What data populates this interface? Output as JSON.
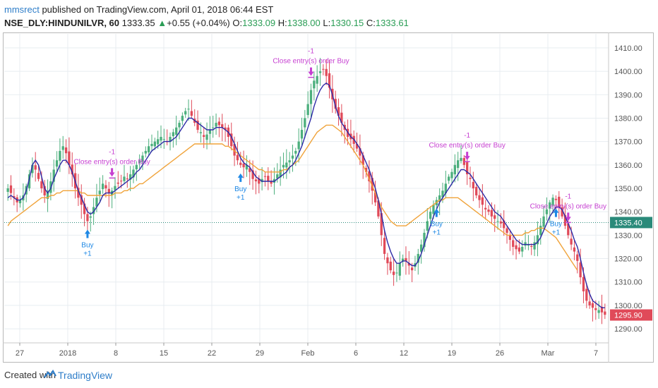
{
  "header": {
    "author": "mmsrect",
    "published": " published on TradingView.com, April 01, 2018 06:44 EST",
    "symbol": "NSE_DLY:HINDUNILVR, 60",
    "last": "1333.35",
    "change": "+0.55 (+0.04%)",
    "open_label": "O:",
    "open": "1333.09",
    "high_label": "H:",
    "high": "1338.00",
    "low_label": "L:",
    "low": "1330.15",
    "close_label": "C:",
    "close": "1333.61"
  },
  "footer": {
    "created_with": "Created with",
    "brand": "TradingView"
  },
  "colors": {
    "bull": "#4caf7d",
    "bear": "#e04a59",
    "fast_ma": "#2d2aa6",
    "slow_ma": "#f0a33a",
    "signal_buy": "#1e88e5",
    "signal_close": "#c63fd1",
    "grid": "#e8edf1",
    "current_line": "#2a8a7a"
  },
  "chart_data": {
    "type": "candlestick",
    "symbol": "NSE_DLY:HINDUNILVR",
    "interval": "60",
    "ylim": [
      1284,
      1416
    ],
    "yticks": [
      1290,
      1300,
      1310,
      1320,
      1330,
      1340,
      1350,
      1360,
      1370,
      1380,
      1390,
      1400,
      1410
    ],
    "x_tick_labels": [
      "27",
      "2018",
      "8",
      "15",
      "22",
      "29",
      "Feb",
      "6",
      "12",
      "19",
      "26",
      "Mar",
      "7"
    ],
    "price_labels": [
      {
        "value": 1335.4,
        "text": "1335.40",
        "color": "#2a8a7a"
      },
      {
        "value": 1295.9,
        "text": "1295.90",
        "color": "#e04a59"
      }
    ],
    "series": [
      {
        "name": "close",
        "values": [
          1350,
          1348,
          1346,
          1344,
          1345,
          1347,
          1351,
          1356,
          1360,
          1358,
          1354,
          1350,
          1347,
          1349,
          1353,
          1358,
          1362,
          1366,
          1368,
          1365,
          1360,
          1356,
          1350,
          1346,
          1343,
          1339,
          1336,
          1338,
          1342,
          1346,
          1349,
          1352,
          1350,
          1348,
          1349,
          1351,
          1352,
          1353,
          1355,
          1354,
          1356,
          1358,
          1360,
          1362,
          1364,
          1366,
          1368,
          1369,
          1370,
          1371,
          1372,
          1371,
          1370,
          1372,
          1374,
          1376,
          1378,
          1381,
          1383,
          1384,
          1381,
          1378,
          1375,
          1374,
          1372,
          1373,
          1375,
          1376,
          1378,
          1377,
          1376,
          1375,
          1372,
          1368,
          1364,
          1362,
          1360,
          1359,
          1360,
          1357,
          1354,
          1353,
          1352,
          1354,
          1355,
          1353,
          1352,
          1354,
          1356,
          1358,
          1360,
          1361,
          1362,
          1364,
          1366,
          1370,
          1375,
          1380,
          1386,
          1392,
          1396,
          1398,
          1400,
          1401,
          1398,
          1393,
          1388,
          1384,
          1381,
          1378,
          1375,
          1372,
          1371,
          1369,
          1367,
          1364,
          1360,
          1357,
          1353,
          1349,
          1344,
          1338,
          1330,
          1322,
          1318,
          1315,
          1313,
          1314,
          1318,
          1320,
          1319,
          1317,
          1315,
          1318,
          1322,
          1326,
          1331,
          1336,
          1340,
          1343,
          1345,
          1347,
          1349,
          1352,
          1355,
          1357,
          1360,
          1362,
          1363,
          1360,
          1356,
          1354,
          1350,
          1347,
          1345,
          1343,
          1341,
          1340,
          1338,
          1337,
          1336,
          1335,
          1333,
          1331,
          1328,
          1325,
          1324,
          1323,
          1325,
          1327,
          1326,
          1325,
          1327,
          1330,
          1334,
          1338,
          1341,
          1344,
          1346,
          1345,
          1342,
          1338,
          1334,
          1330,
          1326,
          1323,
          1319,
          1312,
          1306,
          1302,
          1300,
          1299,
          1298,
          1298,
          1297,
          1296
        ]
      },
      {
        "name": "fast_ma",
        "values": [
          1346,
          1347,
          1346,
          1345,
          1345,
          1346,
          1349,
          1354,
          1360,
          1362,
          1360,
          1355,
          1350,
          1348,
          1350,
          1354,
          1357,
          1360,
          1362,
          1362,
          1360,
          1357,
          1353,
          1349,
          1346,
          1343,
          1340,
          1339,
          1340,
          1342,
          1344,
          1347,
          1348,
          1348,
          1348,
          1349,
          1350,
          1351,
          1352,
          1353,
          1354,
          1355,
          1357,
          1358,
          1360,
          1362,
          1364,
          1366,
          1367,
          1368,
          1369,
          1370,
          1370,
          1370,
          1371,
          1372,
          1374,
          1376,
          1378,
          1380,
          1380,
          1379,
          1378,
          1377,
          1376,
          1375,
          1375,
          1375,
          1376,
          1376,
          1376,
          1375,
          1374,
          1372,
          1369,
          1366,
          1363,
          1361,
          1360,
          1359,
          1357,
          1355,
          1354,
          1353,
          1353,
          1353,
          1353,
          1353,
          1354,
          1355,
          1356,
          1357,
          1359,
          1360,
          1362,
          1365,
          1368,
          1372,
          1376,
          1380,
          1385,
          1389,
          1392,
          1394,
          1395,
          1394,
          1390,
          1385,
          1381,
          1378,
          1376,
          1374,
          1372,
          1371,
          1369,
          1367,
          1364,
          1361,
          1358,
          1354,
          1350,
          1345,
          1339,
          1332,
          1327,
          1323,
          1320,
          1318,
          1318,
          1319,
          1319,
          1318,
          1317,
          1317,
          1319,
          1322,
          1326,
          1330,
          1334,
          1338,
          1341,
          1344,
          1346,
          1348,
          1350,
          1352,
          1354,
          1356,
          1358,
          1358,
          1357,
          1356,
          1354,
          1352,
          1350,
          1348,
          1346,
          1344,
          1342,
          1340,
          1339,
          1338,
          1336,
          1334,
          1332,
          1330,
          1328,
          1327,
          1326,
          1326,
          1326,
          1326,
          1326,
          1327,
          1329,
          1332,
          1335,
          1338,
          1340,
          1342,
          1342,
          1341,
          1338,
          1335,
          1332,
          1328,
          1325,
          1320,
          1314,
          1309,
          1305,
          1302,
          1301,
          1300,
          1299,
          1299
        ]
      },
      {
        "name": "slow_ma",
        "values": [
          1334,
          1336,
          1337,
          1338,
          1339,
          1340,
          1341,
          1342,
          1343,
          1344,
          1345,
          1346,
          1346,
          1346,
          1347,
          1347,
          1348,
          1348,
          1349,
          1349,
          1349,
          1349,
          1349,
          1349,
          1348,
          1348,
          1347,
          1347,
          1347,
          1347,
          1347,
          1347,
          1347,
          1347,
          1347,
          1348,
          1348,
          1348,
          1349,
          1349,
          1350,
          1350,
          1351,
          1352,
          1352,
          1353,
          1354,
          1355,
          1356,
          1357,
          1358,
          1359,
          1360,
          1361,
          1362,
          1363,
          1364,
          1365,
          1366,
          1367,
          1368,
          1369,
          1369,
          1369,
          1369,
          1369,
          1369,
          1369,
          1369,
          1369,
          1369,
          1368,
          1368,
          1367,
          1366,
          1365,
          1364,
          1363,
          1362,
          1361,
          1360,
          1359,
          1358,
          1358,
          1357,
          1357,
          1357,
          1357,
          1357,
          1357,
          1358,
          1358,
          1359,
          1360,
          1361,
          1362,
          1364,
          1366,
          1368,
          1370,
          1372,
          1374,
          1375,
          1376,
          1377,
          1377,
          1377,
          1376,
          1375,
          1374,
          1372,
          1370,
          1368,
          1366,
          1364,
          1362,
          1360,
          1357,
          1354,
          1351,
          1348,
          1345,
          1342,
          1340,
          1338,
          1336,
          1335,
          1334,
          1334,
          1334,
          1334,
          1335,
          1336,
          1337,
          1338,
          1339,
          1340,
          1341,
          1342,
          1343,
          1344,
          1345,
          1345,
          1346,
          1346,
          1346,
          1346,
          1346,
          1345,
          1344,
          1343,
          1342,
          1341,
          1340,
          1339,
          1338,
          1337,
          1336,
          1335,
          1334,
          1333,
          1332,
          1331,
          1330,
          1330,
          1330,
          1330,
          1330,
          1330,
          1331,
          1331,
          1332,
          1332,
          1333,
          1333,
          1333,
          1332,
          1331,
          1330,
          1329,
          1327,
          1325,
          1323,
          1321,
          1319,
          1317,
          1315
        ]
      }
    ],
    "signals": [
      {
        "index": 26,
        "label": "Buy",
        "qty": "+1",
        "kind": "buy"
      },
      {
        "index": 34,
        "label": "Close entry(s) order Buy",
        "qty": "-1",
        "kind": "close"
      },
      {
        "index": 76,
        "label": "Buy",
        "qty": "+1",
        "kind": "buy"
      },
      {
        "index": 99,
        "label": "Close entry(s) order Buy",
        "qty": "-1",
        "kind": "close"
      },
      {
        "index": 140,
        "label": "Buy",
        "qty": "+1",
        "kind": "buy"
      },
      {
        "index": 150,
        "label": "Close entry(s) order Buy",
        "qty": "-1",
        "kind": "close"
      },
      {
        "index": 179,
        "label": "Buy",
        "qty": "+1",
        "kind": "buy"
      },
      {
        "index": 183,
        "label": "Close entry(s) order Buy",
        "qty": "-1",
        "kind": "close"
      }
    ]
  }
}
